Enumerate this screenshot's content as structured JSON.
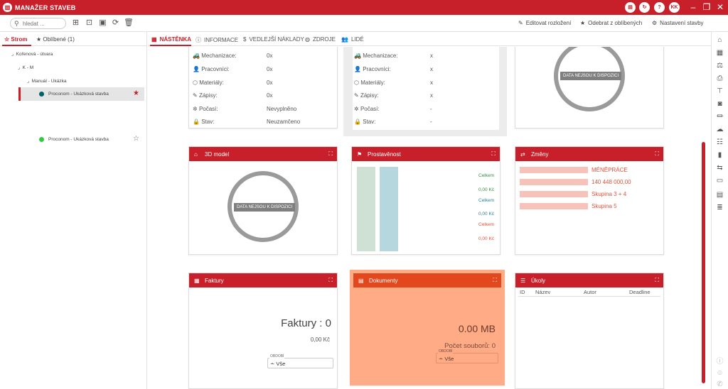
{
  "app": {
    "title": "MANAŽER STAVEB",
    "user_initials": "KK"
  },
  "toolbar": {
    "search_placeholder": "hledat ...",
    "edit_layout": "Editovat rozložení",
    "remove_favorite": "Odebrat z oblíbených",
    "settings": "Nastavení stavby"
  },
  "left": {
    "tabs": [
      {
        "label": "Strom"
      },
      {
        "label": "Oblíbené (1)"
      }
    ],
    "tree": [
      {
        "label": "Kořenová - útvara"
      },
      {
        "label": "K - M"
      },
      {
        "label": "Manuál - Ukázka"
      },
      {
        "label": "Proconom  -  Ukázková stavba",
        "dot_color": "#00606a"
      },
      {
        "label": "Proconom  -  Ukázková stavba",
        "dot_color": "#2ecc40"
      }
    ]
  },
  "main_tabs": [
    {
      "label": "NÁSTĚNKA"
    },
    {
      "label": "INFORMACE"
    },
    {
      "label": "VEDLEJŠÍ NÁKLADY"
    },
    {
      "label": "ZDROJE"
    },
    {
      "label": "LIDÉ"
    }
  ],
  "props_left": {
    "rows": [
      {
        "label": "Mechanizace:",
        "value": "0x"
      },
      {
        "label": "Pracovníci:",
        "value": "0x"
      },
      {
        "label": "Materiály:",
        "value": "0x"
      },
      {
        "label": "Zápisy:",
        "value": "0x"
      },
      {
        "label": "Počasí:",
        "value": "Nevyplněno"
      },
      {
        "label": "Stav:",
        "value": "Neuzamčeno"
      }
    ]
  },
  "props_mid": {
    "rows": [
      {
        "label": "Mechanizace:",
        "value": "x"
      },
      {
        "label": "Pracovníci:",
        "value": "x"
      },
      {
        "label": "Materiály:",
        "value": "x"
      },
      {
        "label": "Zápisy:",
        "value": "x"
      },
      {
        "label": "Počasí:",
        "value": "-"
      },
      {
        "label": "Stav:",
        "value": "-"
      }
    ]
  },
  "no_data": "DATA NEJSOU K DISPOZICI",
  "model3d": {
    "title": "3D model"
  },
  "prostavenost": {
    "title": "Prostavěnost",
    "labels": [
      {
        "text": "Celkem",
        "color": "#3a8a4a"
      },
      {
        "text": "0,00 Kč",
        "color": "#3a8a4a"
      },
      {
        "text": "Celkem",
        "color": "#2a7f95"
      },
      {
        "text": "0,00 Kč",
        "color": "#2a7f95"
      },
      {
        "text": "Celkem",
        "color": "#e0533b"
      },
      {
        "text": "0,00 Kč",
        "color": "#e0533b"
      }
    ]
  },
  "zmeny": {
    "title": "Změny",
    "items": [
      "MÉNĚPRÁCE",
      "140 448 000,00",
      "Skupina 3 + 4",
      "Skupina 5"
    ]
  },
  "faktury": {
    "title": "Faktury",
    "big_label": "Faktury :",
    "big_value": "0",
    "amount": "0,00 Kč",
    "filter_caption": "OBDOBÍ",
    "filter_value": "Vše"
  },
  "dokumenty": {
    "title": "Dokumenty",
    "size": "0.00 MB",
    "count_label": "Počet souborů:",
    "count_value": "0",
    "filter_caption": "OBDOBÍ",
    "filter_value": "Vše"
  },
  "ukoly": {
    "title": "Úkoly",
    "columns": [
      "ID",
      "Název",
      "Autor",
      "Deadline"
    ]
  },
  "colors": {
    "brand": "#c8202b",
    "documents_card": "#ffab85",
    "documents_head": "#e3471e"
  }
}
